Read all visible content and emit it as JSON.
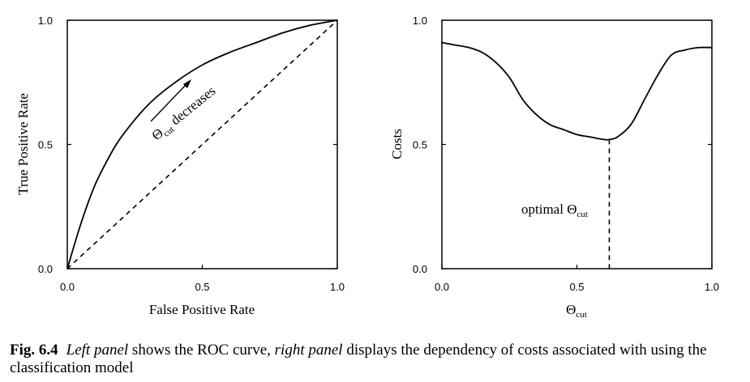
{
  "chart_data": [
    {
      "type": "line",
      "panel": "left",
      "title": "",
      "xlabel": "False Positive Rate",
      "ylabel": "True Positive Rate",
      "xlim": [
        0,
        1
      ],
      "ylim": [
        0,
        1
      ],
      "xticks": [
        "0.0",
        "0.5",
        "1.0"
      ],
      "yticks": [
        "0.0",
        "0.5",
        "1.0"
      ],
      "grid": false,
      "series": [
        {
          "style": "solid",
          "x": [
            0,
            0.05,
            0.1,
            0.15,
            0.2,
            0.3,
            0.4,
            0.5,
            0.6,
            0.7,
            0.8,
            0.9,
            1.0
          ],
          "y": [
            0,
            0.18,
            0.33,
            0.44,
            0.53,
            0.66,
            0.75,
            0.82,
            0.87,
            0.91,
            0.95,
            0.98,
            1.0
          ]
        },
        {
          "style": "dashed",
          "x": [
            0,
            1
          ],
          "y": [
            0,
            1
          ]
        }
      ],
      "annotation": {
        "text_main": "Θ",
        "text_sub": "cut",
        "text_after": " decreases"
      }
    },
    {
      "type": "line",
      "panel": "right",
      "title": "",
      "xlabel_main": "Θ",
      "xlabel_sub": "cut",
      "ylabel": "Costs",
      "xlim": [
        0,
        1
      ],
      "ylim": [
        0,
        1
      ],
      "xticks": [
        "0.0",
        "0.5",
        "1.0"
      ],
      "yticks": [
        "0.0",
        "0.5",
        "1.0"
      ],
      "grid": false,
      "series": [
        {
          "style": "solid",
          "x": [
            0,
            0.05,
            0.1,
            0.15,
            0.2,
            0.25,
            0.3,
            0.35,
            0.4,
            0.45,
            0.5,
            0.55,
            0.6,
            0.62,
            0.65,
            0.7,
            0.75,
            0.8,
            0.85,
            0.9,
            0.95,
            1.0
          ],
          "y": [
            0.91,
            0.9,
            0.89,
            0.87,
            0.83,
            0.77,
            0.68,
            0.62,
            0.58,
            0.56,
            0.54,
            0.53,
            0.52,
            0.52,
            0.53,
            0.58,
            0.68,
            0.78,
            0.86,
            0.88,
            0.89,
            0.89
          ]
        }
      ],
      "optimal_x": 0.62,
      "optimal_y": 0.52,
      "annotation": {
        "text_main": "optimal Θ",
        "text_sub": "cut"
      }
    }
  ],
  "caption": {
    "fig_num": "Fig. 6.4",
    "left_panel": "Left panel",
    "text1": " shows the ROC curve, ",
    "right_panel": "right panel",
    "text2": " displays the dependency of costs associated with using the classification model"
  }
}
